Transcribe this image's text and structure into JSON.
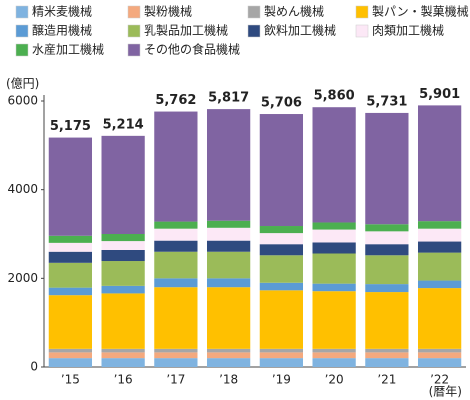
{
  "chart_data": {
    "type": "bar",
    "stacked": true,
    "y_label": "(億円)",
    "x_label": "(暦年)",
    "categories": [
      "’15",
      "’16",
      "’17",
      "’18",
      "’19",
      "’20",
      "’21",
      "’22"
    ],
    "ylim": [
      0,
      6000
    ],
    "yticks": [
      0,
      2000,
      4000,
      6000
    ],
    "grid": false,
    "series": [
      {
        "name": "精米麦機械",
        "color": "#7fb3e0",
        "values": [
          200,
          200,
          200,
          200,
          200,
          200,
          200,
          200
        ]
      },
      {
        "name": "製粉機械",
        "color": "#f4a97e",
        "values": [
          130,
          130,
          130,
          130,
          130,
          130,
          130,
          130
        ]
      },
      {
        "name": "製めん機械",
        "color": "#a6a6a6",
        "values": [
          80,
          80,
          80,
          80,
          80,
          80,
          80,
          80
        ]
      },
      {
        "name": "製パン・製菓機械",
        "color": "#ffc000",
        "values": [
          1210,
          1250,
          1390,
          1390,
          1320,
          1300,
          1280,
          1370
        ]
      },
      {
        "name": "醸造用機械",
        "color": "#5b9bd5",
        "values": [
          170,
          170,
          200,
          200,
          170,
          170,
          180,
          170
        ]
      },
      {
        "name": "乳製品加工機械",
        "color": "#9bbb59",
        "values": [
          560,
          560,
          600,
          600,
          620,
          680,
          650,
          630
        ]
      },
      {
        "name": "飲料加工機械",
        "color": "#2f4a7f",
        "values": [
          250,
          250,
          250,
          250,
          250,
          250,
          250,
          250
        ]
      },
      {
        "name": "肉類加工機械",
        "color": "#fce8f6",
        "values": [
          200,
          200,
          270,
          290,
          250,
          290,
          290,
          290
        ]
      },
      {
        "name": "水産加工機械",
        "color": "#4caf50",
        "values": [
          160,
          160,
          160,
          160,
          160,
          160,
          160,
          170
        ]
      },
      {
        "name": "その他の食品機械",
        "color": "#8064a2",
        "values": [
          2215,
          2214,
          2482,
          2517,
          2526,
          2600,
          2511,
          2611
        ]
      }
    ],
    "totals": [
      5175,
      5214,
      5762,
      5817,
      5706,
      5860,
      5731,
      5901
    ],
    "total_labels": [
      "5,175",
      "5,214",
      "5,762",
      "5,817",
      "5,706",
      "5,860",
      "5,731",
      "5,901"
    ]
  }
}
